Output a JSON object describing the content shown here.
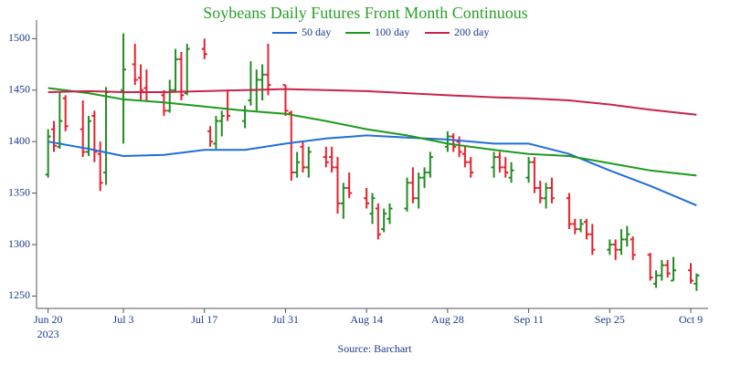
{
  "chart_data": {
    "type": "ohlc",
    "title": "Soybeans Daily Futures Front Month Continuous",
    "source": "Source: Barchart",
    "up_color": "#228b22",
    "down_color": "#e8202e",
    "x": [
      "2023-06-20",
      "2023-06-21",
      "2023-06-22",
      "2023-06-23",
      "2023-06-26",
      "2023-06-27",
      "2023-06-28",
      "2023-06-29",
      "2023-06-30",
      "2023-07-03",
      "2023-07-05",
      "2023-07-06",
      "2023-07-07",
      "2023-07-10",
      "2023-07-11",
      "2023-07-12",
      "2023-07-13",
      "2023-07-14",
      "2023-07-17",
      "2023-07-18",
      "2023-07-19",
      "2023-07-20",
      "2023-07-21",
      "2023-07-24",
      "2023-07-25",
      "2023-07-26",
      "2023-07-27",
      "2023-07-28",
      "2023-07-31",
      "2023-08-01",
      "2023-08-02",
      "2023-08-03",
      "2023-08-04",
      "2023-08-07",
      "2023-08-08",
      "2023-08-09",
      "2023-08-10",
      "2023-08-11",
      "2023-08-14",
      "2023-08-15",
      "2023-08-16",
      "2023-08-17",
      "2023-08-18",
      "2023-08-21",
      "2023-08-22",
      "2023-08-23",
      "2023-08-24",
      "2023-08-25",
      "2023-08-28",
      "2023-08-29",
      "2023-08-30",
      "2023-08-31",
      "2023-09-01",
      "2023-09-05",
      "2023-09-06",
      "2023-09-07",
      "2023-09-08",
      "2023-09-11",
      "2023-09-12",
      "2023-09-13",
      "2023-09-14",
      "2023-09-15",
      "2023-09-18",
      "2023-09-19",
      "2023-09-20",
      "2023-09-21",
      "2023-09-22",
      "2023-09-25",
      "2023-09-26",
      "2023-09-27",
      "2023-09-28",
      "2023-09-29",
      "2023-10-02",
      "2023-10-03",
      "2023-10-04",
      "2023-10-05",
      "2023-10-06",
      "2023-10-09",
      "2023-10-10"
    ],
    "open": [
      1368,
      1412,
      1395,
      1442,
      1412,
      1390,
      1425,
      1388,
      1370,
      1450,
      1475,
      1462,
      1452,
      1445,
      1430,
      1450,
      1480,
      1447,
      1490,
      1410,
      1398,
      1420,
      1432,
      1420,
      1440,
      1450,
      1460,
      1465,
      1455,
      1428,
      1370,
      1395,
      1375,
      1385,
      1385,
      1375,
      1340,
      1355,
      1345,
      1330,
      1335,
      1315,
      1325,
      1335,
      1360,
      1345,
      1365,
      1370,
      1395,
      1405,
      1400,
      1388,
      1380,
      1375,
      1385,
      1375,
      1365,
      1365,
      1380,
      1355,
      1345,
      1355,
      1345,
      1320,
      1315,
      1322,
      1310,
      1295,
      1300,
      1295,
      1305,
      1305,
      1290,
      1262,
      1270,
      1280,
      1265,
      1275,
      1262
    ],
    "high": [
      1412,
      1420,
      1448,
      1445,
      1440,
      1425,
      1430,
      1400,
      1453,
      1505,
      1495,
      1475,
      1470,
      1450,
      1460,
      1490,
      1487,
      1495,
      1500,
      1415,
      1425,
      1430,
      1450,
      1435,
      1478,
      1470,
      1475,
      1495,
      1455,
      1430,
      1390,
      1400,
      1395,
      1395,
      1395,
      1385,
      1360,
      1370,
      1355,
      1350,
      1340,
      1335,
      1340,
      1365,
      1375,
      1370,
      1375,
      1390,
      1410,
      1408,
      1405,
      1395,
      1385,
      1390,
      1390,
      1385,
      1380,
      1385,
      1385,
      1362,
      1360,
      1365,
      1350,
      1325,
      1325,
      1325,
      1320,
      1305,
      1305,
      1315,
      1318,
      1308,
      1292,
      1275,
      1285,
      1285,
      1288,
      1282,
      1272
    ],
    "low": [
      1365,
      1390,
      1393,
      1410,
      1385,
      1386,
      1380,
      1352,
      1358,
      1398,
      1455,
      1440,
      1440,
      1425,
      1428,
      1448,
      1440,
      1445,
      1480,
      1395,
      1393,
      1405,
      1420,
      1413,
      1435,
      1430,
      1440,
      1445,
      1425,
      1362,
      1365,
      1370,
      1365,
      1375,
      1370,
      1330,
      1325,
      1345,
      1335,
      1320,
      1305,
      1312,
      1320,
      1332,
      1340,
      1335,
      1355,
      1365,
      1390,
      1390,
      1385,
      1375,
      1365,
      1365,
      1370,
      1365,
      1360,
      1360,
      1350,
      1340,
      1335,
      1340,
      1315,
      1310,
      1312,
      1305,
      1290,
      1290,
      1285,
      1290,
      1298,
      1285,
      1265,
      1258,
      1265,
      1268,
      1265,
      1262,
      1255
    ],
    "close": [
      1405,
      1396,
      1420,
      1415,
      1390,
      1420,
      1390,
      1360,
      1448,
      1470,
      1460,
      1450,
      1448,
      1430,
      1450,
      1480,
      1445,
      1490,
      1485,
      1400,
      1420,
      1425,
      1425,
      1430,
      1450,
      1460,
      1465,
      1455,
      1430,
      1370,
      1380,
      1375,
      1390,
      1380,
      1375,
      1340,
      1355,
      1350,
      1340,
      1345,
      1310,
      1330,
      1335,
      1360,
      1345,
      1365,
      1370,
      1385,
      1405,
      1395,
      1390,
      1380,
      1370,
      1385,
      1375,
      1370,
      1372,
      1380,
      1355,
      1345,
      1355,
      1345,
      1320,
      1315,
      1320,
      1310,
      1295,
      1300,
      1295,
      1305,
      1310,
      1290,
      1268,
      1270,
      1280,
      1272,
      1275,
      1265,
      1270
    ],
    "overlays": [
      {
        "name": "50 day",
        "color": "#1f6fd9",
        "x": [
          "2023-06-20",
          "2023-06-27",
          "2023-07-03",
          "2023-07-10",
          "2023-07-17",
          "2023-07-24",
          "2023-07-31",
          "2023-08-07",
          "2023-08-14",
          "2023-08-21",
          "2023-08-28",
          "2023-09-05",
          "2023-09-11",
          "2023-09-18",
          "2023-09-25",
          "2023-10-02",
          "2023-10-10"
        ],
        "values": [
          1400,
          1393,
          1386,
          1387,
          1392,
          1392,
          1398,
          1403,
          1406,
          1404,
          1402,
          1398,
          1398,
          1388,
          1372,
          1357,
          1338
        ]
      },
      {
        "name": "100 day",
        "color": "#1c9a1c",
        "x": [
          "2023-06-20",
          "2023-06-27",
          "2023-07-03",
          "2023-07-10",
          "2023-07-17",
          "2023-07-24",
          "2023-07-31",
          "2023-08-07",
          "2023-08-14",
          "2023-08-21",
          "2023-08-28",
          "2023-09-05",
          "2023-09-11",
          "2023-09-18",
          "2023-09-25",
          "2023-10-02",
          "2023-10-10"
        ],
        "values": [
          1452,
          1447,
          1441,
          1438,
          1434,
          1430,
          1427,
          1420,
          1412,
          1406,
          1398,
          1392,
          1388,
          1386,
          1379,
          1372,
          1367
        ]
      },
      {
        "name": "200 day",
        "color": "#c8234a",
        "x": [
          "2023-06-20",
          "2023-06-27",
          "2023-07-03",
          "2023-07-10",
          "2023-07-17",
          "2023-07-24",
          "2023-07-31",
          "2023-08-07",
          "2023-08-14",
          "2023-08-21",
          "2023-08-28",
          "2023-09-05",
          "2023-09-11",
          "2023-09-18",
          "2023-09-25",
          "2023-10-02",
          "2023-10-10"
        ],
        "values": [
          1448,
          1449,
          1448,
          1448,
          1449,
          1450,
          1451,
          1450,
          1449,
          1447,
          1445,
          1443,
          1442,
          1440,
          1436,
          1431,
          1426
        ]
      }
    ],
    "xlim": [
      "2023-06-18",
      "2023-10-12"
    ],
    "xticks": [
      {
        "value": "2023-06-20",
        "label": "Jun 20",
        "sublabel": "2023"
      },
      {
        "value": "2023-07-03",
        "label": "Jul 3"
      },
      {
        "value": "2023-07-17",
        "label": "Jul 17"
      },
      {
        "value": "2023-07-31",
        "label": "Jul 31"
      },
      {
        "value": "2023-08-14",
        "label": "Aug 14"
      },
      {
        "value": "2023-08-28",
        "label": "Aug 28"
      },
      {
        "value": "2023-09-11",
        "label": "Sep 11"
      },
      {
        "value": "2023-09-25",
        "label": "Sep 25"
      },
      {
        "value": "2023-10-09",
        "label": "Oct 9"
      }
    ],
    "ylim": [
      1238,
      1518
    ],
    "yticks": [
      1250,
      1300,
      1350,
      1400,
      1450,
      1500
    ],
    "grid": false
  }
}
